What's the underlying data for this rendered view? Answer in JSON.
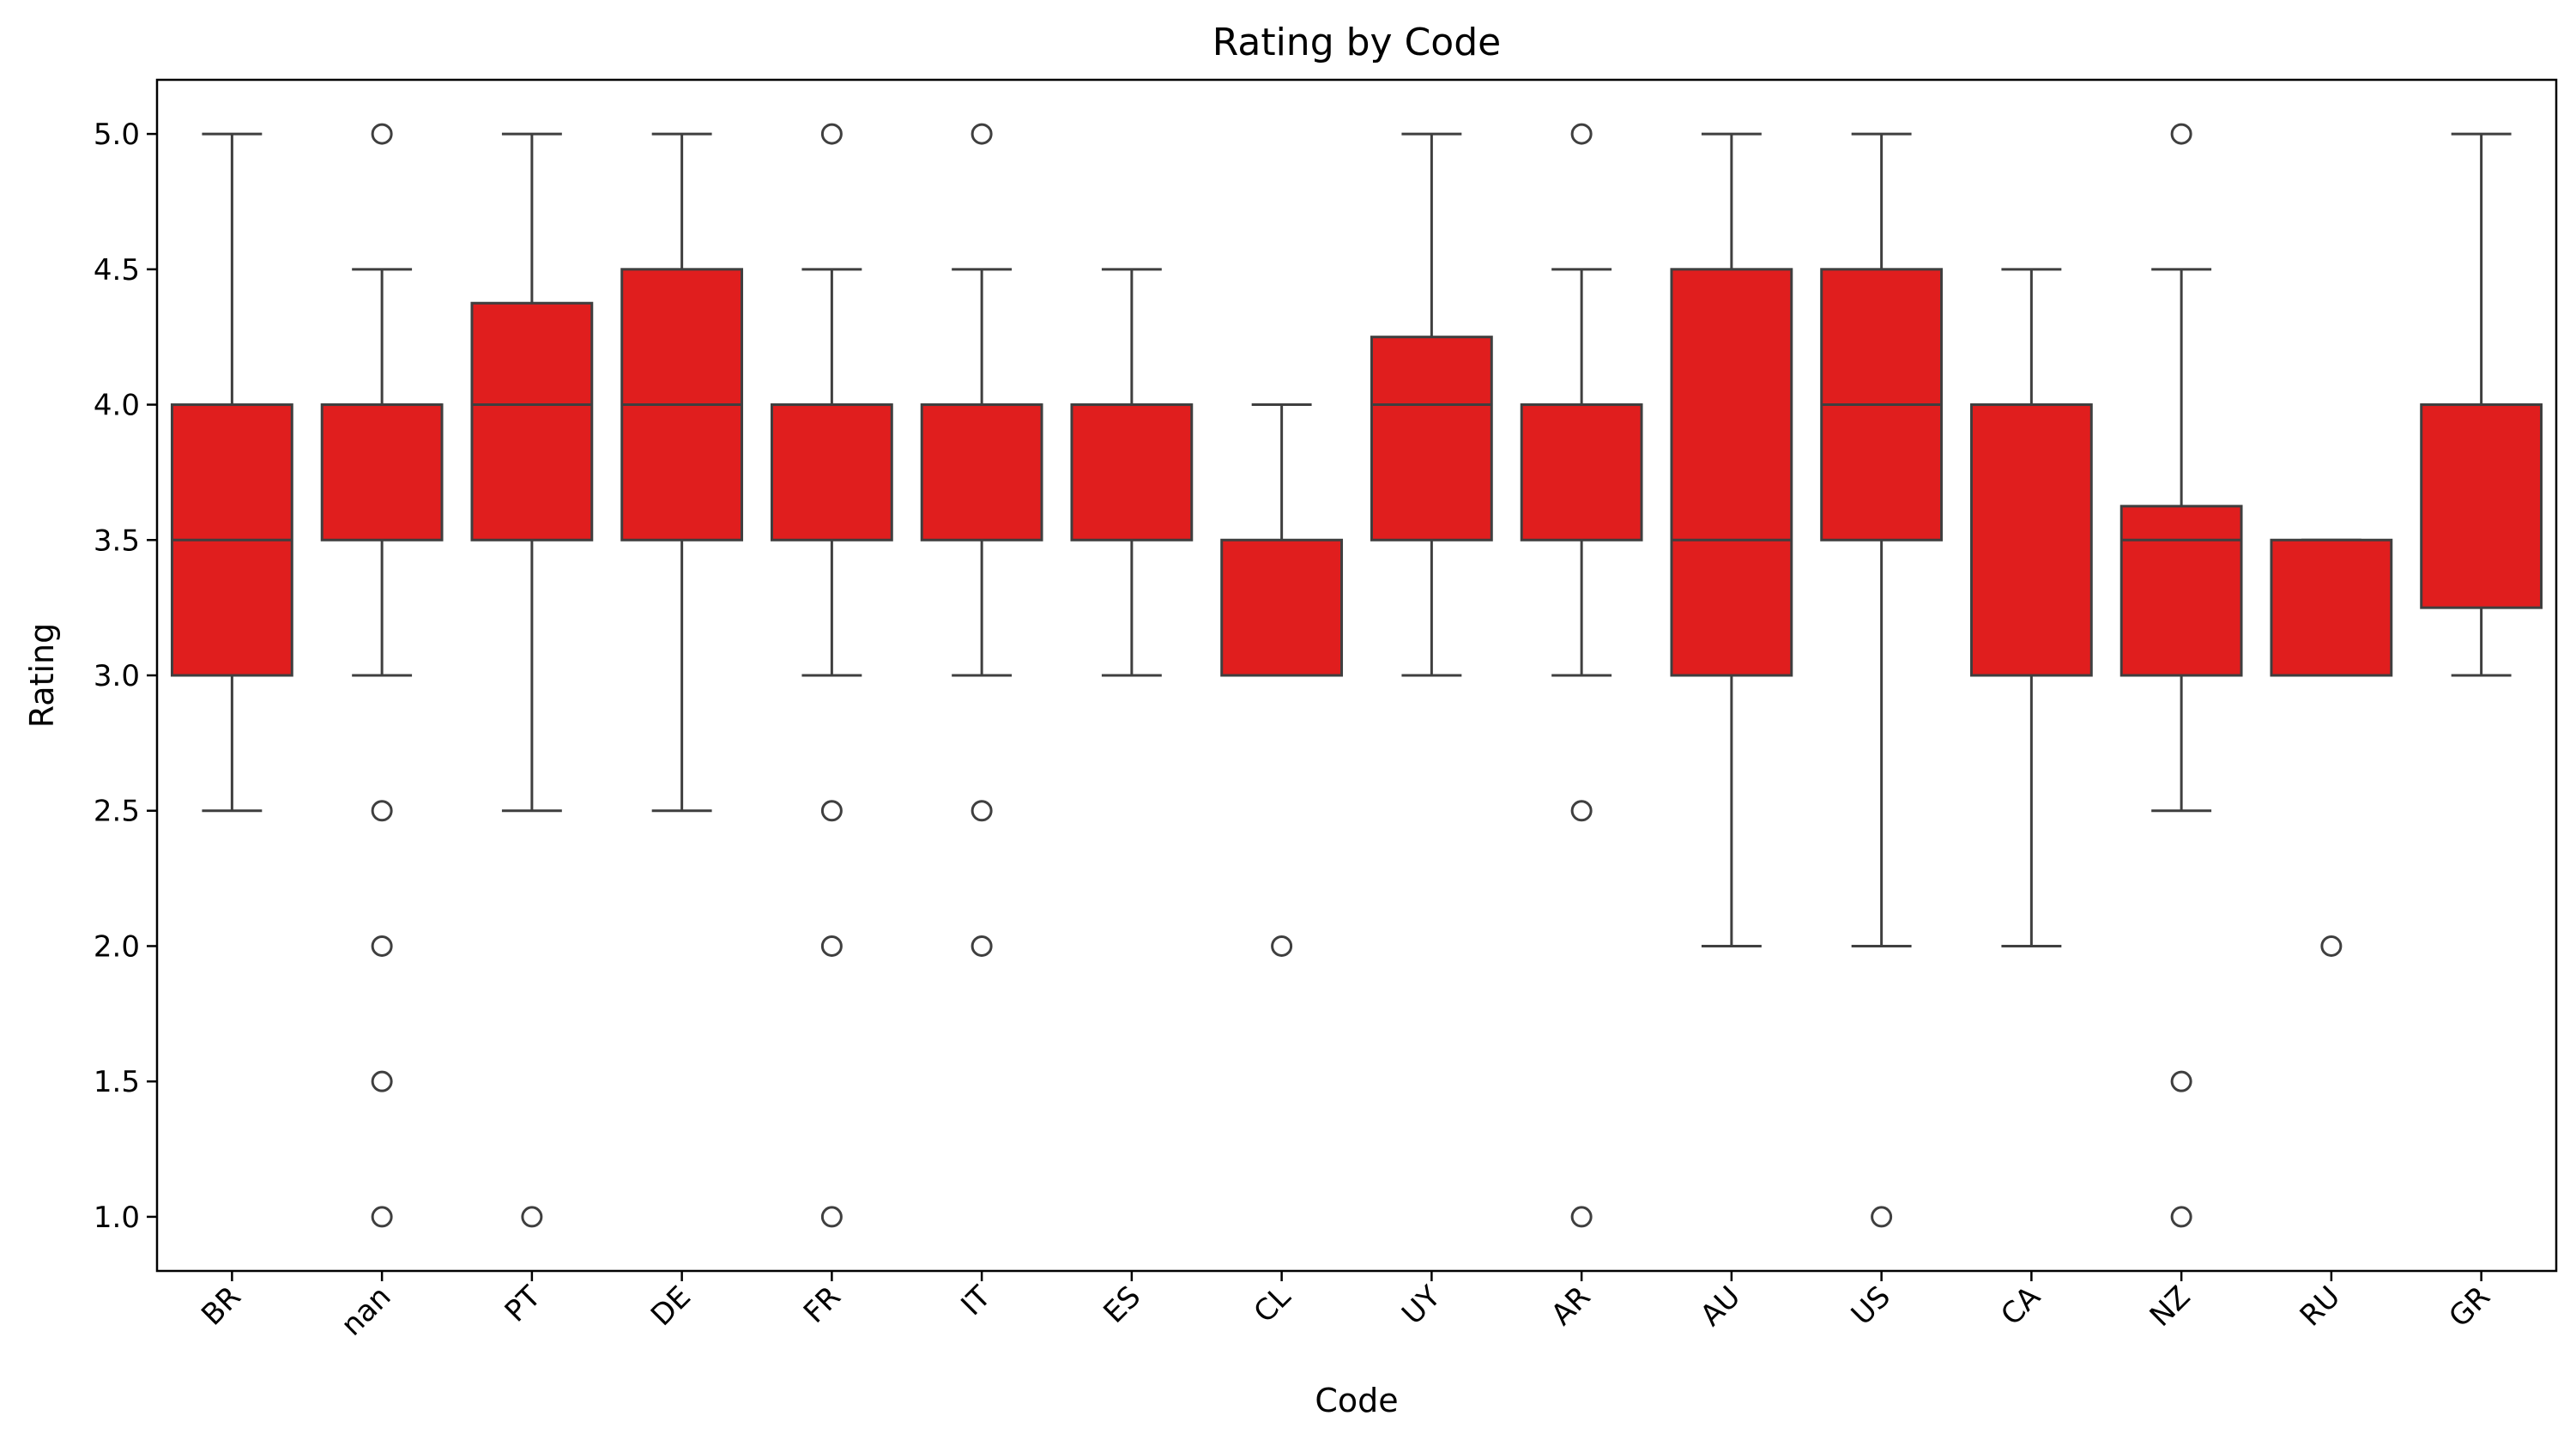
{
  "chart_data": {
    "type": "box",
    "title": "Rating by Code",
    "xlabel": "Code",
    "ylabel": "Rating",
    "ylim": [
      0.8,
      5.2
    ],
    "yticks": [
      1.0,
      1.5,
      2.0,
      2.5,
      3.0,
      3.5,
      4.0,
      4.5,
      5.0
    ],
    "ytick_labels": [
      "1.0",
      "1.5",
      "2.0",
      "2.5",
      "3.0",
      "3.5",
      "4.0",
      "4.5",
      "5.0"
    ],
    "grid": false,
    "box_color": "#e01e1e",
    "line_color": "#3f3f3f",
    "categories": [
      {
        "name": "BR",
        "q1": 3.0,
        "median": 3.5,
        "q3": 4.0,
        "whisker_low": 2.5,
        "whisker_high": 5.0,
        "outliers": []
      },
      {
        "name": "nan",
        "q1": 3.5,
        "median": 4.0,
        "q3": 4.0,
        "whisker_low": 3.0,
        "whisker_high": 4.5,
        "outliers": [
          5.0,
          2.5,
          2.0,
          1.5,
          1.0
        ]
      },
      {
        "name": "PT",
        "q1": 3.5,
        "median": 4.0,
        "q3": 4.375,
        "whisker_low": 2.5,
        "whisker_high": 5.0,
        "outliers": [
          1.0
        ]
      },
      {
        "name": "DE",
        "q1": 3.5,
        "median": 4.0,
        "q3": 4.5,
        "whisker_low": 2.5,
        "whisker_high": 5.0,
        "outliers": []
      },
      {
        "name": "FR",
        "q1": 3.5,
        "median": 4.0,
        "q3": 4.0,
        "whisker_low": 3.0,
        "whisker_high": 4.5,
        "outliers": [
          5.0,
          2.5,
          2.0,
          1.0
        ]
      },
      {
        "name": "IT",
        "q1": 3.5,
        "median": 4.0,
        "q3": 4.0,
        "whisker_low": 3.0,
        "whisker_high": 4.5,
        "outliers": [
          5.0,
          2.5,
          2.0
        ]
      },
      {
        "name": "ES",
        "q1": 3.5,
        "median": 4.0,
        "q3": 4.0,
        "whisker_low": 3.0,
        "whisker_high": 4.5,
        "outliers": []
      },
      {
        "name": "CL",
        "q1": 3.0,
        "median": 3.0,
        "q3": 3.5,
        "whisker_low": 3.0,
        "whisker_high": 4.0,
        "outliers": [
          2.0
        ]
      },
      {
        "name": "UY",
        "q1": 3.5,
        "median": 4.0,
        "q3": 4.25,
        "whisker_low": 3.0,
        "whisker_high": 5.0,
        "outliers": []
      },
      {
        "name": "AR",
        "q1": 3.5,
        "median": 4.0,
        "q3": 4.0,
        "whisker_low": 3.0,
        "whisker_high": 4.5,
        "outliers": [
          5.0,
          2.5,
          1.0
        ]
      },
      {
        "name": "AU",
        "q1": 3.0,
        "median": 3.5,
        "q3": 4.5,
        "whisker_low": 2.0,
        "whisker_high": 5.0,
        "outliers": []
      },
      {
        "name": "US",
        "q1": 3.5,
        "median": 4.0,
        "q3": 4.5,
        "whisker_low": 2.0,
        "whisker_high": 5.0,
        "outliers": [
          1.0
        ]
      },
      {
        "name": "CA",
        "q1": 3.0,
        "median": 4.0,
        "q3": 4.0,
        "whisker_low": 2.0,
        "whisker_high": 4.5,
        "outliers": []
      },
      {
        "name": "NZ",
        "q1": 3.0,
        "median": 3.5,
        "q3": 3.625,
        "whisker_low": 2.5,
        "whisker_high": 4.5,
        "outliers": [
          5.0,
          1.5,
          1.0
        ]
      },
      {
        "name": "RU",
        "q1": 3.0,
        "median": 3.0,
        "q3": 3.5,
        "whisker_low": 3.0,
        "whisker_high": 3.5,
        "outliers": [
          2.0
        ]
      },
      {
        "name": "GR",
        "q1": 3.25,
        "median": 4.0,
        "q3": 4.0,
        "whisker_low": 3.0,
        "whisker_high": 5.0,
        "outliers": []
      }
    ]
  }
}
